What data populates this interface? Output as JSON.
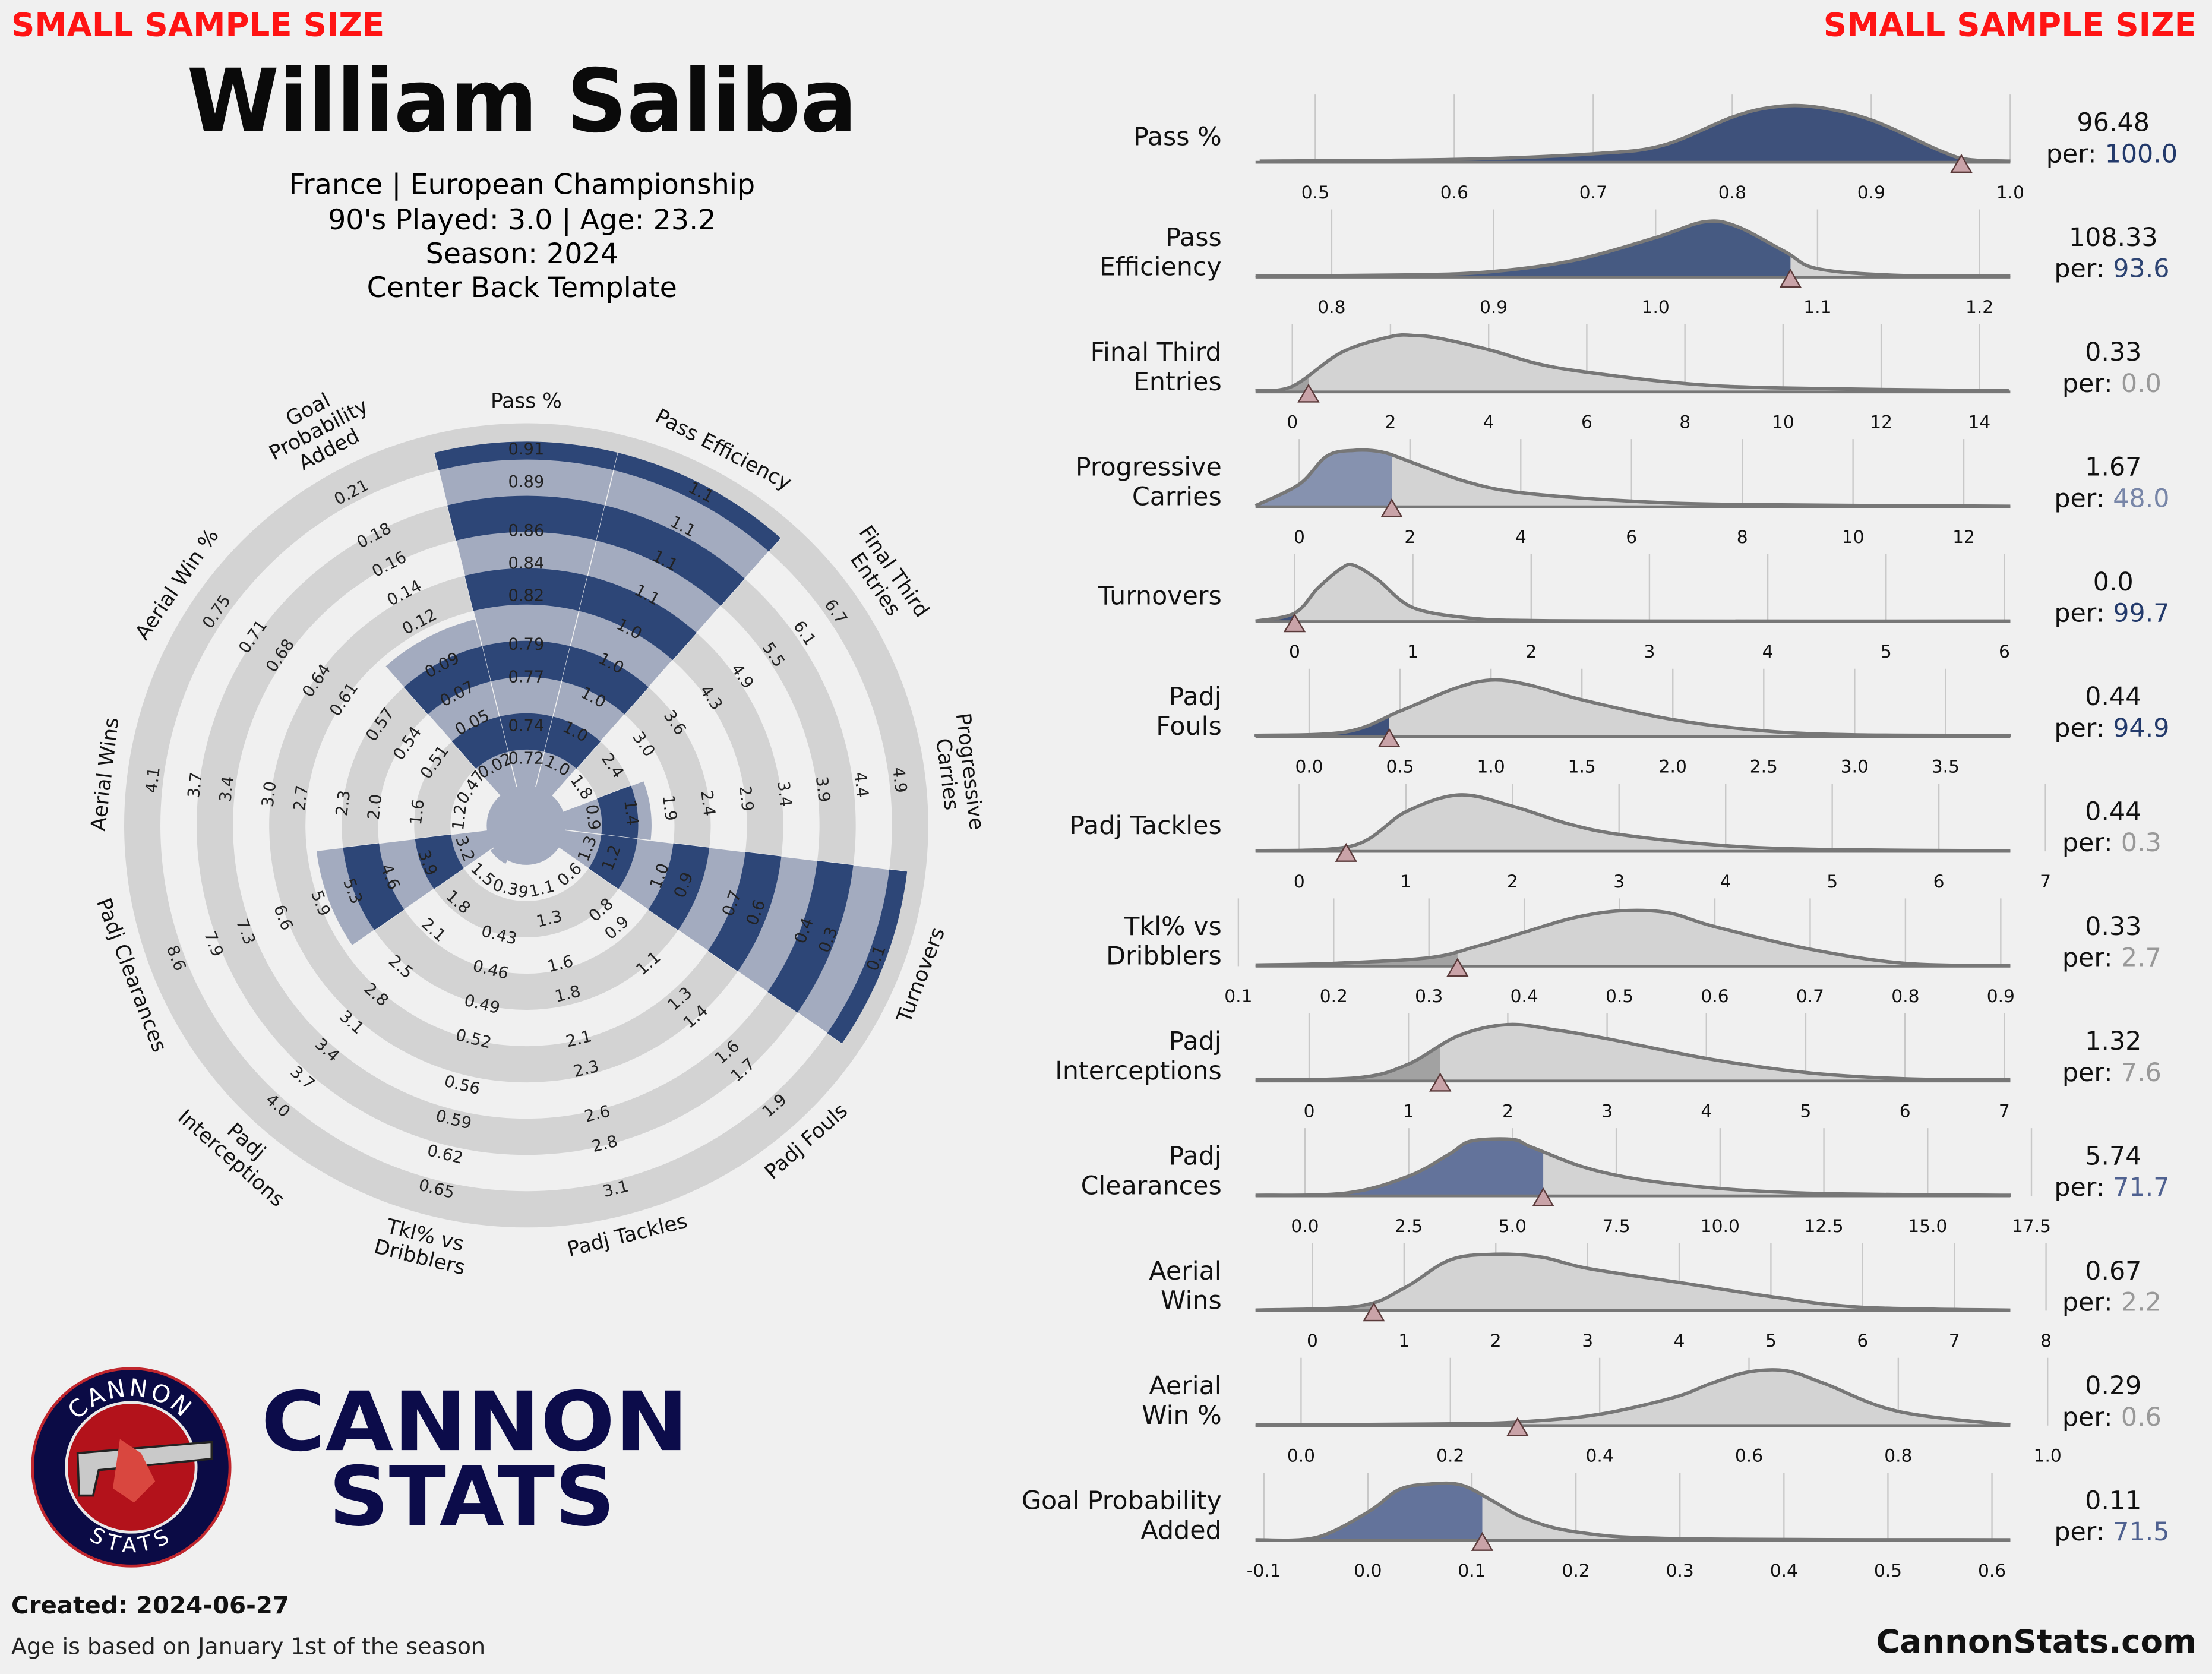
{
  "header": {
    "warning_left": "SMALL SAMPLE SIZE",
    "warning_right": "SMALL SAMPLE SIZE",
    "player": "William Saliba",
    "lines": [
      "France | European Championship",
      "90's Played: 3.0 | Age: 23.2",
      "Season: 2024",
      "Center Back Template"
    ]
  },
  "logo": {
    "badge_top": "CANNON",
    "badge_bottom": "STATS",
    "wordmark": [
      "CANNON",
      "STATS"
    ]
  },
  "footer": {
    "created": "Created: 2024-06-27",
    "note": "Age is based on January 1st of the season",
    "site": "CannonStats.com"
  },
  "chart_data": [
    {
      "type": "radar",
      "color": "#2d4677",
      "axes": [
        {
          "label": [
            "Pass %"
          ],
          "ticks": [
            0.72,
            0.74,
            0.77,
            0.79,
            0.82,
            0.84,
            0.86,
            0.89,
            0.91
          ],
          "rlim": [
            0.72,
            0.91
          ],
          "value": 0.9648
        },
        {
          "label": [
            "Pass Efficiency"
          ],
          "ticks": [
            {
              "value": 1.0,
              "label": "1.0"
            },
            {
              "value": 1.01,
              "label": "1.0"
            },
            {
              "value": 1.02,
              "label": "1.0"
            },
            {
              "value": 1.03,
              "label": "1.0"
            },
            {
              "value": 1.04,
              "label": "1.0"
            },
            {
              "value": 1.05,
              "label": "1.1"
            },
            {
              "value": 1.06,
              "label": "1.1"
            },
            {
              "value": 1.07,
              "label": "1.1"
            },
            {
              "value": 1.08,
              "label": "1.1"
            }
          ],
          "rlim": [
            1.0,
            1.08
          ],
          "value": 1.0833
        },
        {
          "label": [
            "Final Third",
            "Entries"
          ],
          "ticks": [
            1.8,
            2.4,
            {
              "value": 3.0,
              "label": "3.0"
            },
            3.6,
            4.3,
            4.9,
            5.5,
            6.1,
            6.7
          ],
          "rlim": [
            1.8,
            6.7
          ],
          "value": 0.33
        },
        {
          "label": [
            "Progressive",
            "Carries"
          ],
          "ticks": [
            0.9,
            1.4,
            1.9,
            2.4,
            2.9,
            3.4,
            3.9,
            4.4,
            4.9
          ],
          "rlim": [
            0.9,
            4.9
          ],
          "value": 1.67
        },
        {
          "label": [
            "Turnovers"
          ],
          "ticks": [
            1.3,
            1.2,
            {
              "value": 1.0,
              "label": "1.0"
            },
            0.9,
            0.7,
            0.6,
            0.4,
            0.3,
            0.1
          ],
          "rlim": [
            1.3,
            0.1
          ],
          "value": 0.0
        },
        {
          "label": [
            "Padj Fouls"
          ],
          "ticks": [
            0.6,
            0.8,
            0.9,
            1.1,
            1.3,
            1.4,
            1.6,
            1.7,
            1.9
          ],
          "rlim": [
            0.6,
            1.9
          ],
          "value": 0.44
        },
        {
          "label": [
            "Padj Tackles"
          ],
          "ticks": [
            1.1,
            1.3,
            1.6,
            1.8,
            2.1,
            2.3,
            2.6,
            2.8,
            3.1
          ],
          "rlim": [
            1.1,
            3.1
          ],
          "value": 0.44
        },
        {
          "label": [
            "Tkl% vs",
            "Dribblers"
          ],
          "ticks": [
            0.39,
            0.43,
            0.46,
            0.49,
            0.52,
            0.56,
            0.59,
            0.62,
            0.65
          ],
          "rlim": [
            0.39,
            0.65
          ],
          "value": 0.33
        },
        {
          "label": [
            "Padj",
            "Interceptions"
          ],
          "ticks": [
            1.5,
            1.8,
            2.1,
            2.5,
            2.8,
            3.1,
            3.4,
            3.7,
            {
              "value": 4.0,
              "label": "4.0"
            }
          ],
          "rlim": [
            1.5,
            4.0
          ],
          "value": 1.32
        },
        {
          "label": [
            "Padj Clearances"
          ],
          "ticks": [
            3.2,
            3.9,
            4.6,
            5.3,
            5.9,
            6.6,
            7.3,
            7.9,
            8.6
          ],
          "rlim": [
            3.2,
            8.6
          ],
          "value": 5.74
        },
        {
          "label": [
            "Aerial Wins"
          ],
          "ticks": [
            1.2,
            1.6,
            {
              "value": 2.0,
              "label": "2.0"
            },
            2.3,
            2.7,
            {
              "value": 3.0,
              "label": "3.0"
            },
            3.4,
            3.7,
            4.1
          ],
          "rlim": [
            1.2,
            4.1
          ],
          "value": 0.67
        },
        {
          "label": [
            "Aerial Win %"
          ],
          "ticks": [
            0.47,
            0.51,
            0.54,
            0.57,
            0.61,
            0.64,
            0.68,
            0.71,
            0.75
          ],
          "rlim": [
            0.47,
            0.75
          ],
          "value": 0.29
        },
        {
          "label": [
            "Goal",
            "Probability",
            "Added"
          ],
          "ticks": [
            0.02,
            0.05,
            0.07,
            0.09,
            0.12,
            0.14,
            0.16,
            0.18,
            0.21
          ],
          "rlim": [
            0.02,
            0.21
          ],
          "value": 0.11
        }
      ]
    },
    {
      "type": "density",
      "title": [
        "Pass %"
      ],
      "xlim": [
        0.457,
        1.0
      ],
      "xticks": [
        0.5,
        0.6,
        0.7,
        0.8,
        0.9,
        {
          "value": 1.0,
          "label": "1.0"
        }
      ],
      "x": [
        0.46,
        0.6,
        0.7,
        0.75,
        0.8,
        0.83,
        0.86,
        0.9,
        0.95,
        0.97,
        1.0
      ],
      "values": [
        0.02,
        0.05,
        0.15,
        0.3,
        0.8,
        0.98,
        0.98,
        0.75,
        0.2,
        0.05,
        0.02
      ],
      "player_value": 0.9648,
      "player_value_label": "96.48",
      "percentile_prefix": "per:",
      "percentile": 100.0,
      "percentile_label": "100.0",
      "color": "#233a6b"
    },
    {
      "type": "density",
      "title": [
        "Pass",
        "Efficiency"
      ],
      "xlim": [
        0.753,
        1.219
      ],
      "xticks": [
        0.8,
        0.9,
        {
          "value": 1.0,
          "label": "1.0"
        },
        1.1,
        1.2
      ],
      "x": [
        0.753,
        0.85,
        0.9,
        0.95,
        1.0,
        1.03,
        1.05,
        1.08,
        1.1,
        1.15,
        1.219
      ],
      "values": [
        0.02,
        0.04,
        0.1,
        0.3,
        0.7,
        0.98,
        0.9,
        0.45,
        0.15,
        0.03,
        0.02
      ],
      "player_value": 1.0833,
      "player_value_label": "108.33",
      "percentile_prefix": "per:",
      "percentile": 93.6,
      "color": "#2d4473"
    },
    {
      "type": "density",
      "title": [
        "Final Third",
        "Entries"
      ],
      "xlim": [
        -0.75,
        14.63
      ],
      "xticks": [
        0,
        2,
        4,
        6,
        8,
        10,
        12,
        14
      ],
      "x": [
        -0.75,
        0,
        1,
        2,
        2.5,
        3,
        4,
        5,
        6,
        8,
        10,
        14.6
      ],
      "values": [
        0.02,
        0.1,
        0.7,
        0.98,
        1,
        0.95,
        0.75,
        0.5,
        0.35,
        0.15,
        0.07,
        0.02
      ],
      "player_value": 0.33,
      "percentile_prefix": "per:",
      "percentile": 0.0,
      "percentile_label": "0.0",
      "color": "#999999"
    },
    {
      "type": "density",
      "title": [
        "Progressive",
        "Carries"
      ],
      "xlim": [
        -0.79,
        12.84
      ],
      "xticks": [
        0,
        2,
        4,
        6,
        8,
        10,
        12
      ],
      "x": [
        -0.79,
        0,
        0.5,
        1,
        1.5,
        2,
        3,
        4,
        6,
        8,
        12.84
      ],
      "values": [
        0.02,
        0.4,
        0.9,
        1.0,
        0.97,
        0.8,
        0.45,
        0.25,
        0.1,
        0.04,
        0.01
      ],
      "player_value": 1.67,
      "percentile_prefix": "per:",
      "percentile": 48.0,
      "percentile_label": "48.0",
      "color": "#7886a8"
    },
    {
      "type": "density",
      "title": [
        "Turnovers"
      ],
      "xlim": [
        -0.33,
        6.05
      ],
      "xticks": [
        0,
        1,
        2,
        3,
        4,
        5,
        6
      ],
      "x": [
        -0.33,
        0,
        0.2,
        0.4,
        0.5,
        0.7,
        1.0,
        1.5,
        2,
        3,
        6.05
      ],
      "values": [
        0.01,
        0.15,
        0.6,
        0.95,
        1,
        0.75,
        0.25,
        0.06,
        0.02,
        0.01,
        0.01
      ],
      "player_value": 0.0,
      "player_value_label": "0.0",
      "percentile_prefix": "per:",
      "percentile": 99.7,
      "color": "#233a6b"
    },
    {
      "type": "density",
      "title": [
        "Padj",
        "Fouls"
      ],
      "xlim": [
        -0.295,
        3.856
      ],
      "xticks": [
        {
          "value": 0.0,
          "label": "0.0"
        },
        0.5,
        {
          "value": 1.0,
          "label": "1.0"
        },
        1.5,
        {
          "value": 2.0,
          "label": "2.0"
        },
        2.5,
        {
          "value": 3.0,
          "label": "3.0"
        },
        3.5
      ],
      "x": [
        -0.3,
        0.2,
        0.5,
        0.8,
        1.0,
        1.2,
        1.5,
        2.0,
        2.5,
        3.0,
        3.86
      ],
      "values": [
        0.02,
        0.08,
        0.45,
        0.85,
        1,
        0.92,
        0.65,
        0.3,
        0.1,
        0.03,
        0.02
      ],
      "player_value": 0.44,
      "percentile_prefix": "per:",
      "percentile": 94.9,
      "color": "#233a6b"
    },
    {
      "type": "density",
      "title": [
        "Padj Tackles"
      ],
      "xlim": [
        -0.41,
        6.67
      ],
      "xticks": [
        0,
        1,
        2,
        3,
        4,
        5,
        6,
        7
      ],
      "x": [
        -0.41,
        0.5,
        1,
        1.5,
        2,
        2.5,
        3,
        4,
        5,
        6.67
      ],
      "values": [
        0.01,
        0.1,
        0.7,
        1,
        0.8,
        0.5,
        0.3,
        0.1,
        0.03,
        0.01
      ],
      "player_value": 0.44,
      "percentile_prefix": "per:",
      "percentile": 0.3,
      "color": "#999999"
    },
    {
      "type": "density",
      "title": [
        "Tkl% vs",
        "Dribblers"
      ],
      "xlim": [
        0.118,
        0.91
      ],
      "xticks": [
        0.1,
        0.2,
        0.3,
        0.4,
        0.5,
        0.6,
        0.7,
        0.8,
        0.9
      ],
      "x": [
        0.118,
        0.2,
        0.3,
        0.35,
        0.4,
        0.45,
        0.5,
        0.55,
        0.6,
        0.7,
        0.8,
        0.91
      ],
      "values": [
        0.02,
        0.05,
        0.15,
        0.35,
        0.6,
        0.85,
        0.98,
        0.95,
        0.7,
        0.3,
        0.05,
        0.01
      ],
      "player_value": 0.33,
      "percentile_prefix": "per:",
      "percentile": 2.7,
      "color": "#999999"
    },
    {
      "type": "density",
      "title": [
        "Padj",
        "Interceptions"
      ],
      "xlim": [
        -0.54,
        7.06
      ],
      "xticks": [
        0,
        1,
        2,
        3,
        4,
        5,
        6,
        7
      ],
      "x": [
        -0.54,
        0.5,
        1,
        1.5,
        2,
        2.5,
        3,
        4,
        5,
        6,
        7.06
      ],
      "values": [
        0.02,
        0.06,
        0.3,
        0.8,
        1,
        0.9,
        0.75,
        0.4,
        0.15,
        0.04,
        0.02
      ],
      "player_value": 1.32,
      "percentile_prefix": "per:",
      "percentile": 7.6,
      "color": "#999999"
    },
    {
      "type": "density",
      "title": [
        "Padj",
        "Clearances"
      ],
      "xlim": [
        -1.19,
        16.99
      ],
      "xticks": [
        {
          "value": 0.0,
          "label": "0.0"
        },
        2.5,
        {
          "value": 5.0,
          "label": "5.0"
        },
        7.5,
        {
          "value": 10.0,
          "label": "10.0"
        },
        12.5,
        {
          "value": 15.0,
          "label": "15.0"
        },
        17.5
      ],
      "x": [
        -1.19,
        1,
        2.5,
        3.5,
        4,
        5,
        5.5,
        7,
        9,
        12,
        17
      ],
      "values": [
        0.01,
        0.05,
        0.35,
        0.75,
        0.97,
        1,
        0.85,
        0.45,
        0.2,
        0.05,
        0.01
      ],
      "player_value": 5.74,
      "percentile_prefix": "per:",
      "percentile": 71.7,
      "color": "#4f6190"
    },
    {
      "type": "density",
      "title": [
        "Aerial",
        "Wins"
      ],
      "xlim": [
        -0.62,
        7.61
      ],
      "xticks": [
        0,
        1,
        2,
        3,
        4,
        5,
        6,
        7,
        8
      ],
      "x": [
        -0.62,
        0.5,
        1,
        1.5,
        2,
        2.5,
        3,
        4,
        5,
        6,
        7.61
      ],
      "values": [
        0.01,
        0.08,
        0.4,
        0.9,
        1,
        0.95,
        0.75,
        0.5,
        0.25,
        0.06,
        0.01
      ],
      "player_value": 0.67,
      "percentile_prefix": "per:",
      "percentile": 2.2,
      "color": "#999999"
    },
    {
      "type": "density",
      "title": [
        "Aerial",
        "Win %"
      ],
      "xlim": [
        -0.061,
        0.95
      ],
      "xticks": [
        {
          "value": 0.0,
          "label": "0.0"
        },
        0.2,
        0.4,
        0.6,
        0.8,
        {
          "value": 1.0,
          "label": "1.0"
        }
      ],
      "x": [
        -0.061,
        0.2,
        0.3,
        0.4,
        0.5,
        0.55,
        0.6,
        0.65,
        0.7,
        0.8,
        0.95
      ],
      "values": [
        0.01,
        0.03,
        0.07,
        0.2,
        0.5,
        0.75,
        0.95,
        0.97,
        0.75,
        0.25,
        0.01
      ],
      "player_value": 0.29,
      "percentile_prefix": "per:",
      "percentile": 0.6,
      "color": "#999999"
    },
    {
      "type": "density",
      "title": [
        "Goal Probability",
        "Added"
      ],
      "xlim": [
        -0.108,
        0.6176
      ],
      "xticks": [
        -0.1,
        {
          "value": 0.0,
          "label": "0.0"
        },
        0.1,
        0.2,
        0.3,
        0.4,
        0.5,
        0.6
      ],
      "x": [
        -0.108,
        -0.05,
        0,
        0.03,
        0.06,
        0.09,
        0.12,
        0.15,
        0.2,
        0.3,
        0.6176
      ],
      "values": [
        0.01,
        0.05,
        0.5,
        0.9,
        1,
        0.98,
        0.7,
        0.4,
        0.15,
        0.03,
        0.01
      ],
      "player_value": 0.11,
      "percentile_prefix": "per:",
      "percentile": 71.5,
      "color": "#4f6190"
    }
  ]
}
